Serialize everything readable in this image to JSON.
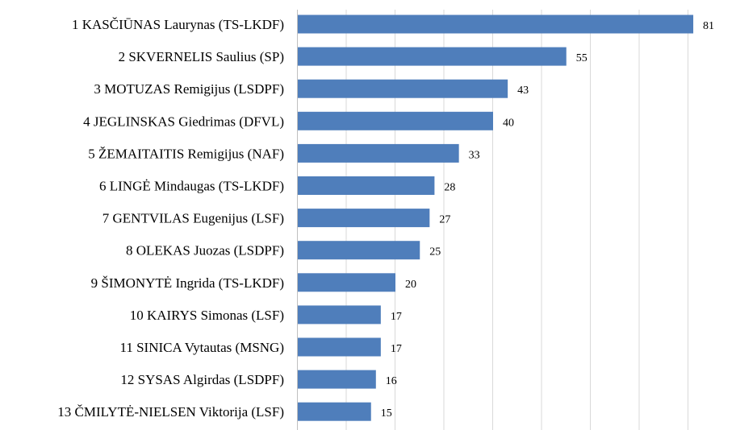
{
  "chart_data": {
    "type": "bar",
    "orientation": "horizontal",
    "title": "",
    "xlabel": "",
    "ylabel": "",
    "categories": [
      "1 KASČIŪNAS Laurynas (TS-LKDF)",
      "2 SKVERNELIS Saulius (SP)",
      "3 MOTUZAS Remigijus (LSDPF)",
      "4 JEGLINSKAS Giedrimas (DFVL)",
      "5 ŽEMAITAITIS Remigijus (NAF)",
      "6 LINGĖ Mindaugas (TS-LKDF)",
      "7 GENTVILAS Eugenijus (LSF)",
      "8 OLEKAS Juozas (LSDPF)",
      "9 ŠIMONYTĖ Ingrida (TS-LKDF)",
      "10 KAIRYS Simonas (LSF)",
      "11 SINICA Vytautas (MSNG)",
      "12 SYSAS Algirdas (LSDPF)",
      "13 ČMILYTĖ-NIELSEN Viktorija (LSF)"
    ],
    "values": [
      81,
      55,
      43,
      40,
      33,
      28,
      27,
      25,
      20,
      17,
      17,
      16,
      15
    ],
    "xlim": [
      0,
      90
    ],
    "grid": "vertical",
    "grid_step": 10,
    "bar_color": "#4f7ebb",
    "data_labels": true
  }
}
